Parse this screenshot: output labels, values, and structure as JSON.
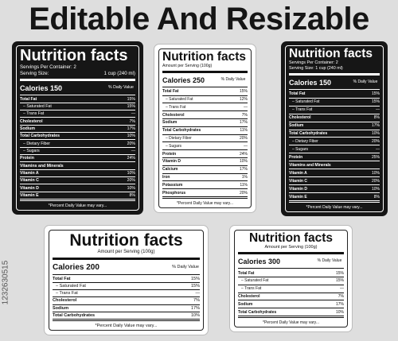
{
  "header": {
    "title": "Editable And Resizable"
  },
  "watermark": "1232630515",
  "labels": [
    {
      "title": "Nutrition facts",
      "serving": [
        [
          "Servings Per Container: 2"
        ],
        [
          "Serving Size:",
          "1 cup (240 ml)"
        ]
      ],
      "calories": "Calories 150",
      "daily_value": "% Daily Value",
      "rows": [
        [
          "Total Fat",
          "15%"
        ],
        [
          "– Saturated Fat",
          "15%"
        ],
        [
          "– Trans Fat",
          "—"
        ],
        [
          "Cholesterol",
          "7%"
        ],
        [
          "Sodium",
          "17%"
        ],
        [
          "Total Carbohydrates",
          "10%"
        ],
        [
          "– Dietary Fiber",
          "20%"
        ],
        [
          "– Sugars",
          "—"
        ],
        [
          "Protein",
          "24%"
        ],
        [
          "Vitamins and Minerals"
        ],
        [
          "Vitamin A",
          "10%"
        ],
        [
          "Vitamin C",
          "20%"
        ],
        [
          "Vitamin D",
          "10%"
        ],
        [
          "Vitamin E",
          "8%"
        ]
      ],
      "footer": "*Percent Daily Value may vary..."
    },
    {
      "title": "Nutrition facts",
      "serving": [
        [
          "Amount per Serving (100g)"
        ]
      ],
      "calories": "Calories 250",
      "daily_value": "% Daily Value",
      "rows": [
        [
          "Total Fat",
          "15%"
        ],
        [
          "– Saturated Fat",
          "12%"
        ],
        [
          "– Trans Fat",
          "—"
        ],
        [
          "Cholesterol",
          "7%"
        ],
        [
          "Sodium",
          "17%"
        ],
        [
          "Total Carbohydrates",
          "11%"
        ],
        [
          "– Dietary Fiber",
          "20%"
        ],
        [
          "– Sugars",
          "—"
        ],
        [
          "Protein",
          "24%"
        ],
        [
          "Vitamin D",
          "10%"
        ],
        [
          "Calcium",
          "17%"
        ],
        [
          "Iron",
          "1%"
        ],
        [
          "Potassium",
          "11%"
        ],
        [
          "Phosphorus",
          "20%"
        ]
      ],
      "footer": "*Percent Daily Value may vary..."
    },
    {
      "title": "Nutrition facts",
      "serving": [
        [
          "Servings Per Container: 2"
        ],
        [
          "Serving Size: 1 cup (240 ml)"
        ]
      ],
      "calories": "Calories 150",
      "daily_value": "% Daily Value",
      "rows": [
        [
          "Total Fat",
          "15%"
        ],
        [
          "– Saturated Fat",
          "15%"
        ],
        [
          "– Trans Fat",
          "—"
        ],
        [
          "Cholesterol",
          "8%"
        ],
        [
          "Sodium",
          "17%"
        ],
        [
          "Total Carbohydrates",
          "10%"
        ],
        [
          "– Dietary Fiber",
          "20%"
        ],
        [
          "– Sugars",
          "—"
        ],
        [
          "Protein",
          "25%"
        ],
        [
          "Vitamins and Minerals"
        ],
        [
          "Vitamin A",
          "10%"
        ],
        [
          "Vitamin C",
          "20%"
        ],
        [
          "Vitamin D",
          "10%"
        ],
        [
          "Vitamin E",
          "8%"
        ]
      ],
      "footer": "*Percent Daily Value may vary..."
    },
    {
      "title": "Nutrition facts",
      "serving": [
        [
          "Amount per Serving (100g)"
        ]
      ],
      "calories": "Calories 200",
      "daily_value": "% Daily Value",
      "rows": [
        [
          "Total Fat",
          "15%"
        ],
        [
          "– Saturated Fat",
          "15%"
        ],
        [
          "– Trans Fat",
          "—"
        ],
        [
          "Cholesterol",
          "7%"
        ],
        [
          "Sodium",
          "17%"
        ],
        [
          "Total Carbohydrates",
          "10%"
        ]
      ],
      "footer": "*Percent Daily Value may vary..."
    },
    {
      "title": "Nutrition facts",
      "serving": [
        [
          "Amount per Serving (100g)"
        ]
      ],
      "calories": "Calories 300",
      "daily_value": "% Daily Value",
      "rows": [
        [
          "Total Fat",
          "15%"
        ],
        [
          "– Saturated Fat",
          "15%"
        ],
        [
          "– Trans Fat",
          "—"
        ],
        [
          "Cholesterol",
          "7%"
        ],
        [
          "Sodium",
          "17%"
        ],
        [
          "Total Carbohydrates",
          "10%"
        ]
      ],
      "footer": "*Percent Daily Value may vary..."
    }
  ]
}
